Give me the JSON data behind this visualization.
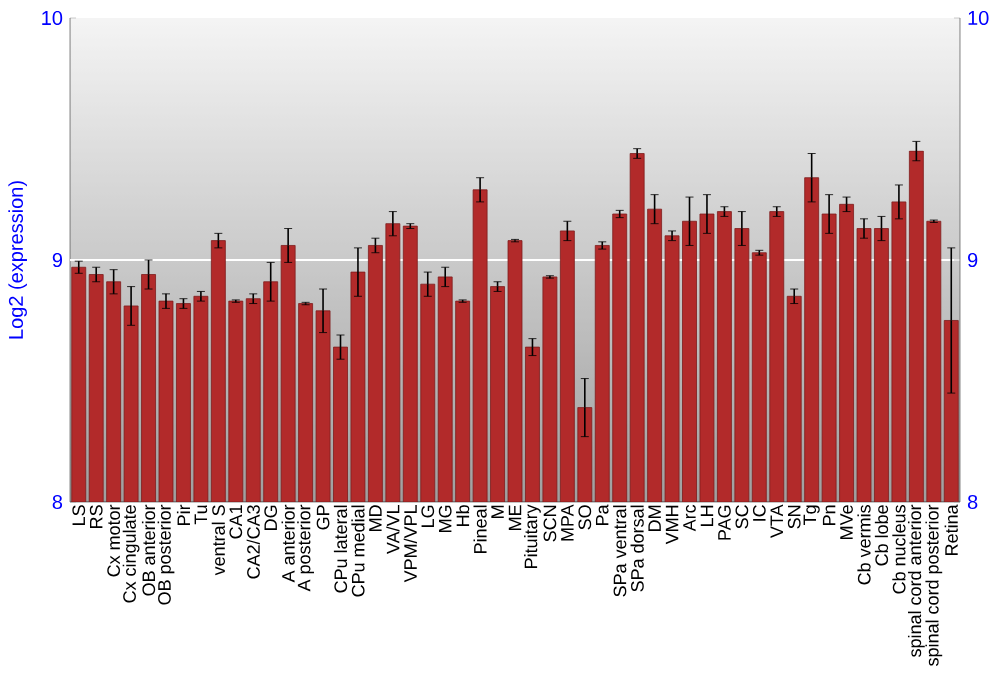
{
  "chart_data": {
    "type": "bar",
    "ylabel": "Log2 (expression)",
    "categories": [
      "LS",
      "RS",
      "Cx motor",
      "Cx cingulate",
      "OB anterior",
      "OB posterior",
      "Pir",
      "Tu",
      "ventral S",
      "CA1",
      "CA2/CA3",
      "DG",
      "A anterior",
      "A posterior",
      "GP",
      "CPu lateral",
      "CPu medial",
      "MD",
      "VA/VL",
      "VPM/VPL",
      "LG",
      "MG",
      "Hb",
      "Pineal",
      "M",
      "ME",
      "Pituitary",
      "SCN",
      "MPA",
      "SO",
      "Pa",
      "SPa ventral",
      "SPa dorsal",
      "DM",
      "VMH",
      "Arc",
      "LH",
      "PAG",
      "SC",
      "IC",
      "VTA",
      "SN",
      "Tg",
      "Pn",
      "MVe",
      "Cb vermis",
      "Cb lobe",
      "Cb nucleus",
      "spinal cord anterior",
      "spinal cord posterior",
      "Retina"
    ],
    "values": [
      8.97,
      8.94,
      8.91,
      8.81,
      8.94,
      8.83,
      8.82,
      8.85,
      9.08,
      8.83,
      8.84,
      8.91,
      9.06,
      8.82,
      8.79,
      8.64,
      8.95,
      9.06,
      9.15,
      9.14,
      8.9,
      8.93,
      8.83,
      9.29,
      8.89,
      9.08,
      8.64,
      8.93,
      9.12,
      8.39,
      9.06,
      9.19,
      9.44,
      9.21,
      9.1,
      9.16,
      9.19,
      9.2,
      9.13,
      9.03,
      9.2,
      8.85,
      9.34,
      9.19,
      9.23,
      9.13,
      9.13,
      9.24,
      9.45,
      9.16,
      8.75
    ],
    "errors": [
      0.025,
      0.03,
      0.05,
      0.08,
      0.06,
      0.03,
      0.02,
      0.02,
      0.03,
      0.005,
      0.02,
      0.08,
      0.07,
      0.005,
      0.09,
      0.05,
      0.1,
      0.03,
      0.05,
      0.01,
      0.05,
      0.04,
      0.005,
      0.05,
      0.02,
      0.005,
      0.035,
      0.005,
      0.04,
      0.12,
      0.015,
      0.015,
      0.02,
      0.06,
      0.02,
      0.1,
      0.08,
      0.02,
      0.07,
      0.01,
      0.02,
      0.03,
      0.1,
      0.08,
      0.03,
      0.04,
      0.05,
      0.07,
      0.04,
      0.005,
      0.3
    ],
    "color": "#b22a2a",
    "ylim": [
      8,
      10
    ],
    "yticks": [
      8,
      9,
      10
    ],
    "y2lim": [
      8,
      10
    ],
    "y2ticks": [
      8,
      9,
      10
    ],
    "ref_lines": [
      {
        "axis": "y",
        "value": 9,
        "color": "#ffffff"
      }
    ]
  }
}
